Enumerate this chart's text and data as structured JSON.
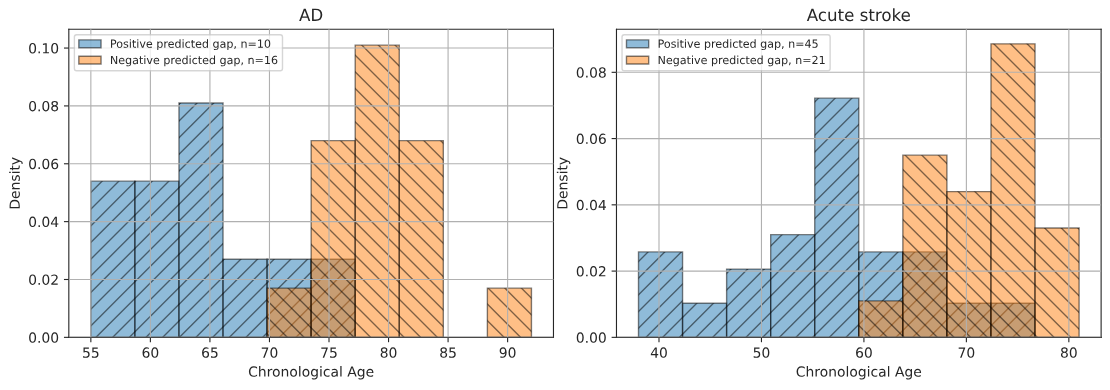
{
  "chart_data": [
    {
      "type": "histogram",
      "title": "AD",
      "xlabel": "Chronological Age",
      "ylabel": "Density",
      "xlim": [
        53.15,
        93.85
      ],
      "ylim": [
        0,
        0.1065
      ],
      "xticks": [
        55,
        60,
        65,
        70,
        75,
        80,
        85,
        90
      ],
      "yticks": [
        {
          "value": 0,
          "label": "0.00"
        },
        {
          "value": 0.02,
          "label": "0.02"
        },
        {
          "value": 0.04,
          "label": "0.04"
        },
        {
          "value": 0.06,
          "label": "0.06"
        },
        {
          "value": 0.08,
          "label": "0.08"
        },
        {
          "value": 0.1,
          "label": "0.10"
        }
      ],
      "grid": true,
      "legend": "top left",
      "bins": [
        55,
        58.7,
        62.4,
        66.1,
        69.8,
        73.5,
        77.2,
        80.9,
        84.6,
        88.3,
        92.0
      ],
      "series": [
        {
          "name": "Positive predicted gap, n=10",
          "color": "#1f77b4",
          "values": [
            0.054,
            0.054,
            0.081,
            0.027,
            0.027,
            0.027,
            null,
            null,
            null,
            null
          ]
        },
        {
          "name": "Negative predicted gap, n=16",
          "color": "#ff7f0e",
          "values": [
            null,
            null,
            null,
            null,
            0.017,
            0.068,
            0.101,
            0.068,
            null,
            0.017
          ]
        }
      ]
    },
    {
      "type": "histogram",
      "title": "Acute stroke",
      "xlabel": "Chronological Age",
      "ylabel": "Density",
      "xlim": [
        35.85,
        83.15
      ],
      "ylim": [
        0,
        0.093
      ],
      "xticks": [
        40,
        50,
        60,
        70,
        80
      ],
      "yticks": [
        {
          "value": 0,
          "label": "0.00"
        },
        {
          "value": 0.02,
          "label": "0.02"
        },
        {
          "value": 0.04,
          "label": "0.04"
        },
        {
          "value": 0.06,
          "label": "0.06"
        },
        {
          "value": 0.08,
          "label": "0.08"
        }
      ],
      "grid": true,
      "legend": "top left",
      "bins": [
        38.0,
        42.3,
        46.6,
        50.9,
        55.2,
        59.5,
        63.8,
        68.1,
        72.4,
        76.7,
        81.0
      ],
      "series": [
        {
          "name": "Positive predicted gap, n=45",
          "color": "#1f77b4",
          "values": [
            0.0258,
            0.0103,
            0.0206,
            0.031,
            0.0722,
            0.0258,
            0.0258,
            0.0103,
            0.0103,
            null
          ]
        },
        {
          "name": "Negative predicted gap, n=21",
          "color": "#ff7f0e",
          "values": [
            null,
            null,
            null,
            null,
            null,
            0.011,
            0.055,
            0.044,
            0.0886,
            0.033
          ]
        }
      ]
    }
  ]
}
